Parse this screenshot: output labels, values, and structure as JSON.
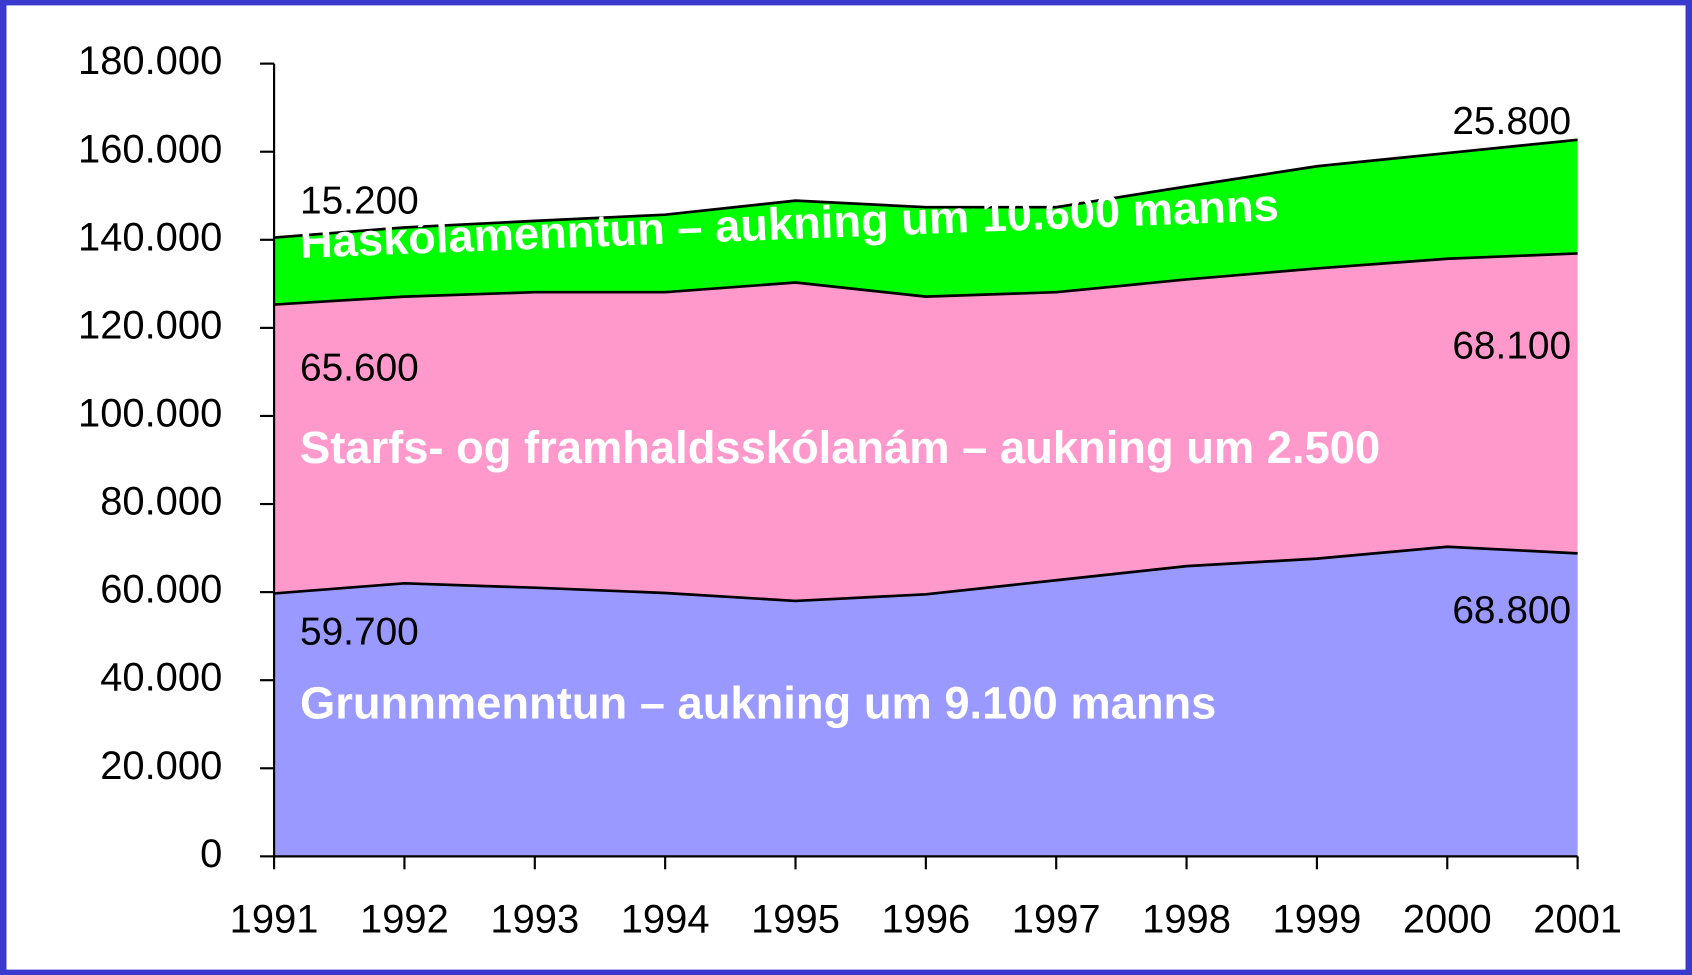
{
  "chart_data": {
    "type": "area",
    "categories": [
      "1991",
      "1992",
      "1993",
      "1994",
      "1995",
      "1996",
      "1997",
      "1998",
      "1999",
      "2000",
      "2001"
    ],
    "stacked": true,
    "series": [
      {
        "name": "Grunnmenntun – aukning um 9.100 manns",
        "color": "#9999ff",
        "values": [
          59700,
          62000,
          61000,
          59800,
          58000,
          59500,
          62700,
          65900,
          67600,
          70300,
          68800
        ],
        "value_labels": [
          "59.700",
          null,
          null,
          null,
          null,
          null,
          null,
          null,
          null,
          null,
          "68.800"
        ]
      },
      {
        "name": "Starfs- og framhaldsskólanám – aukning um 2.500",
        "color": "#ff99cc",
        "values": [
          65600,
          65100,
          67100,
          68300,
          72300,
          67600,
          65400,
          65100,
          65900,
          65400,
          68100
        ],
        "value_labels": [
          "65.600",
          null,
          null,
          null,
          null,
          null,
          null,
          null,
          null,
          null,
          "68.100"
        ]
      },
      {
        "name": "Háskólamenntun – aukning um 10.600 manns",
        "color": "#00ff00",
        "values": [
          15200,
          15700,
          16200,
          17600,
          18600,
          20300,
          19300,
          21100,
          23200,
          24000,
          25800
        ],
        "value_labels": [
          "15.200",
          null,
          null,
          null,
          null,
          null,
          null,
          null,
          null,
          null,
          "25.800"
        ]
      }
    ],
    "ylim": [
      0,
      180000
    ],
    "yticks": [
      0,
      {
        "value": 20000,
        "label": "20.000"
      },
      {
        "value": 40000,
        "label": "40.000"
      },
      {
        "value": 60000,
        "label": "60.000"
      },
      {
        "value": 80000,
        "label": "80.000"
      },
      {
        "value": 100000,
        "label": "100.000"
      },
      {
        "value": 120000,
        "label": "120.000"
      },
      {
        "value": 140000,
        "label": "140.000"
      },
      {
        "value": 160000,
        "label": "160.000"
      },
      {
        "value": 180000,
        "label": "180.000"
      }
    ]
  }
}
